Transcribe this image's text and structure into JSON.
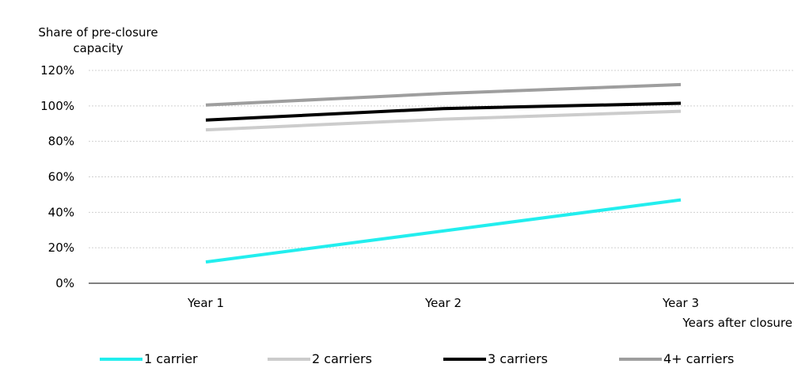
{
  "chart_data": {
    "type": "line",
    "title": "",
    "ylabel": "Share of pre-closure capacity",
    "xlabel": "Years after closure",
    "categories": [
      "Year 1",
      "Year 2",
      "Year 3"
    ],
    "ylim": [
      0,
      120
    ],
    "yticks": [
      "0%",
      "20%",
      "40%",
      "60%",
      "80%",
      "100%",
      "120%"
    ],
    "grid": true,
    "legend_position": "bottom",
    "series": [
      {
        "name": "1 carrier",
        "color": "#22eeee",
        "values": [
          12,
          29.5,
          47
        ]
      },
      {
        "name": "2 carriers",
        "color": "#cccccc",
        "values": [
          86.5,
          92.5,
          97
        ]
      },
      {
        "name": "3 carriers",
        "color": "#000000",
        "values": [
          92,
          98.5,
          101.5
        ]
      },
      {
        "name": "4+ carriers",
        "color": "#9e9e9e",
        "values": [
          100.5,
          107,
          112
        ]
      }
    ]
  }
}
